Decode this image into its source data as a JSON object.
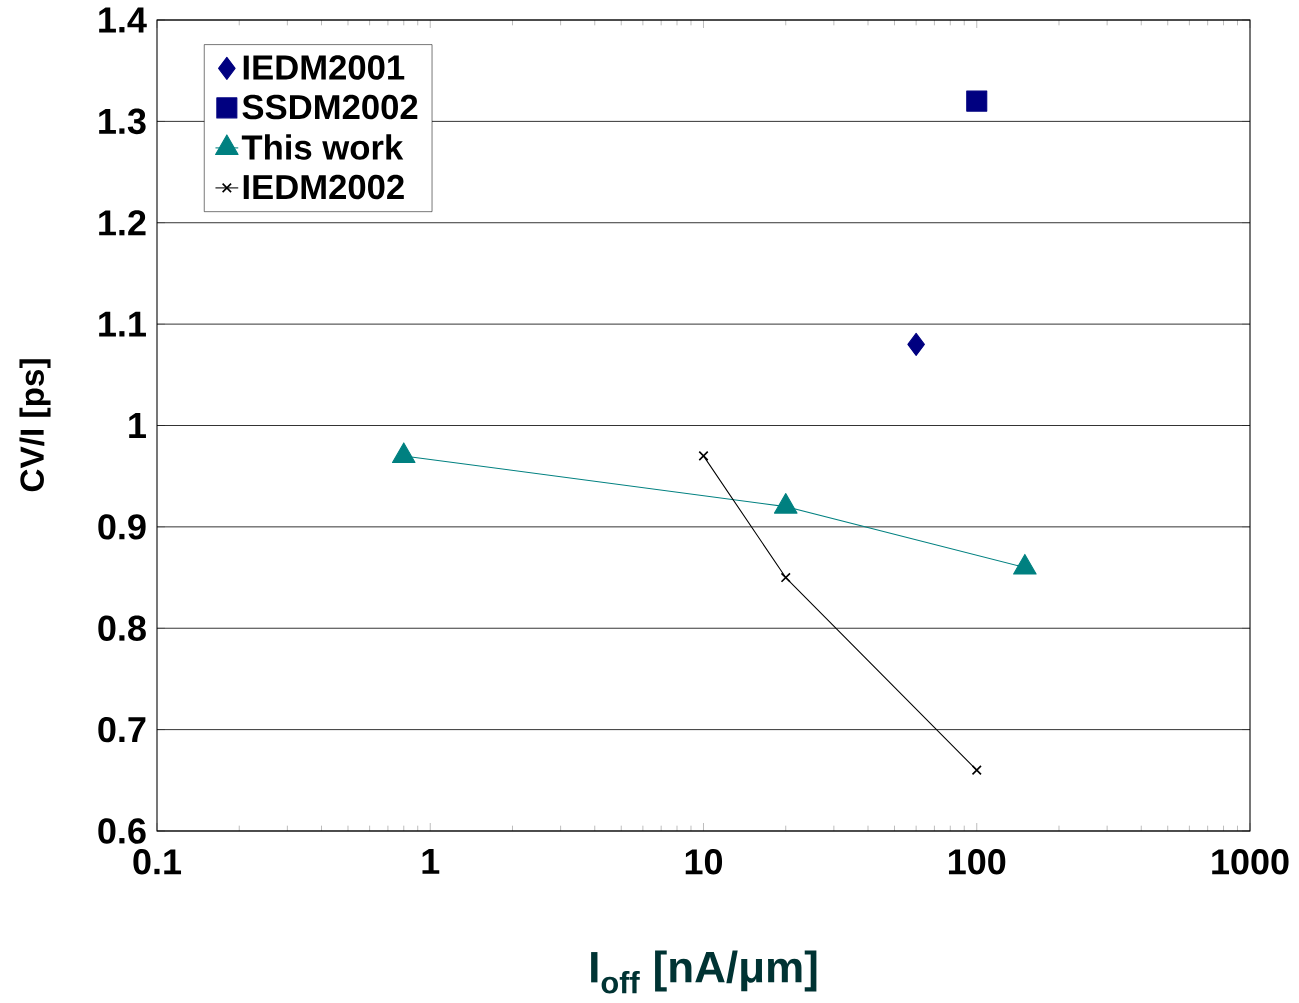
{
  "chart_data": {
    "type": "scatter",
    "xlabel": "I$_{off}$ [nA/μm]",
    "ylabel": "CV/I [ps]",
    "series": [
      {
        "name": "IEDM2001",
        "marker": "diamond",
        "color": "#000080",
        "x": [
          60
        ],
        "values": [
          1.08
        ]
      },
      {
        "name": "SSDM2002",
        "marker": "square",
        "color": "#000080",
        "x": [
          100
        ],
        "values": [
          1.32
        ]
      },
      {
        "name": "This work",
        "type": "line",
        "marker": "triangle",
        "color": "#008080",
        "x": [
          0.8,
          20,
          150
        ],
        "values": [
          0.97,
          0.92,
          0.86
        ]
      },
      {
        "name": "IEDM2002",
        "type": "line",
        "marker": "cross",
        "color": "#000000",
        "x": [
          10,
          20,
          100
        ],
        "values": [
          0.97,
          0.85,
          0.66
        ]
      }
    ],
    "log": "x",
    "xlim": [
      0.1,
      1000
    ],
    "xticks": [
      0.1,
      1,
      10,
      100,
      1000
    ],
    "ylim": [
      0.6,
      1.4
    ],
    "yticks": [
      0.6,
      0.7,
      0.8,
      0.9,
      1,
      1.1,
      1.2,
      1.3,
      1.4
    ],
    "grid": "y",
    "legend": "top left"
  }
}
